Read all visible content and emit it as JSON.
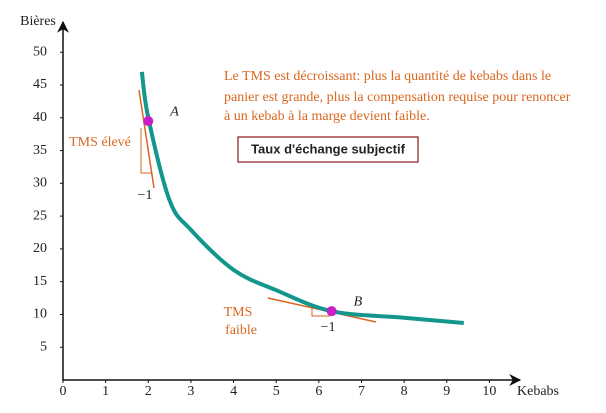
{
  "chart_data": {
    "type": "line",
    "x_label": "Kebabs",
    "y_label": "Bières",
    "xlim": [
      0,
      10.6
    ],
    "ylim": [
      0,
      54
    ],
    "xticks": [
      0,
      1,
      2,
      3,
      4,
      5,
      6,
      7,
      8,
      9,
      10
    ],
    "yticks": [
      5,
      10,
      15,
      20,
      25,
      30,
      35,
      40,
      45,
      50
    ],
    "x": [
      1.85,
      2,
      2.5,
      3,
      4,
      5,
      6.3,
      8,
      9.4
    ],
    "series": [
      {
        "color": "#13968c",
        "values": [
          47,
          40,
          27.4,
          22.9,
          16.8,
          13.7,
          10.5,
          9.5,
          8.7
        ]
      }
    ],
    "points": [
      {
        "label": "A",
        "x": 2,
        "y": 39.5,
        "color": "#c81fc8"
      },
      {
        "label": "B",
        "x": 6.3,
        "y": 10.5,
        "color": "#c81fc8"
      }
    ],
    "annotation": [
      "Le TMS est décroissant: plus la quantité de kebabs dans le",
      "panier est grande, plus la compensation requise pour renoncer",
      "à un kebab à la marge devient faible."
    ],
    "box_label": "Taux d'échange subjectif",
    "tms_high": "TMS élevé",
    "tms_low": [
      "TMS",
      "faible"
    ],
    "slope_a": "−1",
    "slope_b": "−1"
  }
}
